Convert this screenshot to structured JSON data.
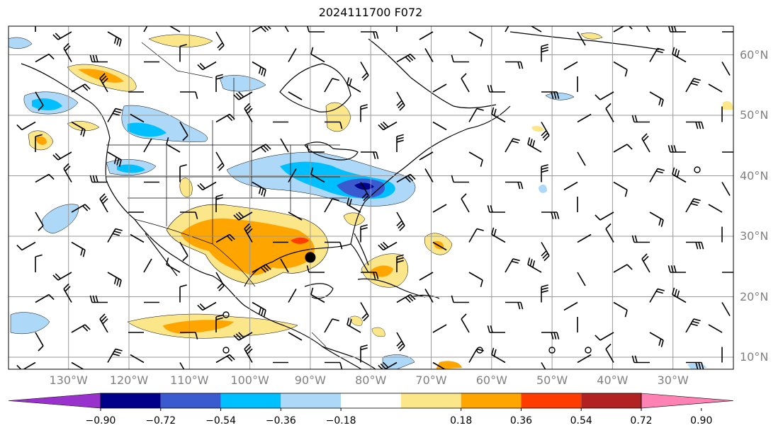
{
  "title": "2024111700 F072",
  "lat_labels": [
    {
      "text": "60°N",
      "lat": 60
    },
    {
      "text": "50°N",
      "lat": 50
    },
    {
      "text": "40°N",
      "lat": 40
    },
    {
      "text": "30°N",
      "lat": 30
    },
    {
      "text": "20°N",
      "lat": 20
    },
    {
      "text": "10°N",
      "lat": 10
    }
  ],
  "lon_labels": [
    {
      "text": "130°W",
      "lon": -130
    },
    {
      "text": "120°W",
      "lon": -120
    },
    {
      "text": "110°W",
      "lon": -110
    },
    {
      "text": "100°W",
      "lon": -100
    },
    {
      "text": "90°W",
      "lon": -90
    },
    {
      "text": "80°W",
      "lon": -80
    },
    {
      "text": "70°W",
      "lon": -70
    },
    {
      "text": "60°W",
      "lon": -60
    },
    {
      "text": "50°W",
      "lon": -50
    },
    {
      "text": "40°W",
      "lon": -40
    },
    {
      "text": "30°W",
      "lon": -30
    }
  ],
  "colorbar": {
    "ticks": [
      "−0.90",
      "−0.72",
      "−0.54",
      "−0.36",
      "−0.18",
      "0.18",
      "0.36",
      "0.54",
      "0.72",
      "0.90"
    ],
    "colors": [
      "#9932cc",
      "#00008b",
      "#3a5bd0",
      "#00bfff",
      "#add8f7",
      "#ffffff",
      "#fce68a",
      "#ffa500",
      "#ff3c00",
      "#b22222",
      "#ff82b4"
    ],
    "extend": "both"
  },
  "map_extent": {
    "lon_min": -140,
    "lon_max": -20,
    "lat_min": 8,
    "lat_max": 65
  },
  "gridlines": true,
  "marker": {
    "lon": -90,
    "lat": 26.5,
    "label": "",
    "color": "#000000"
  }
}
